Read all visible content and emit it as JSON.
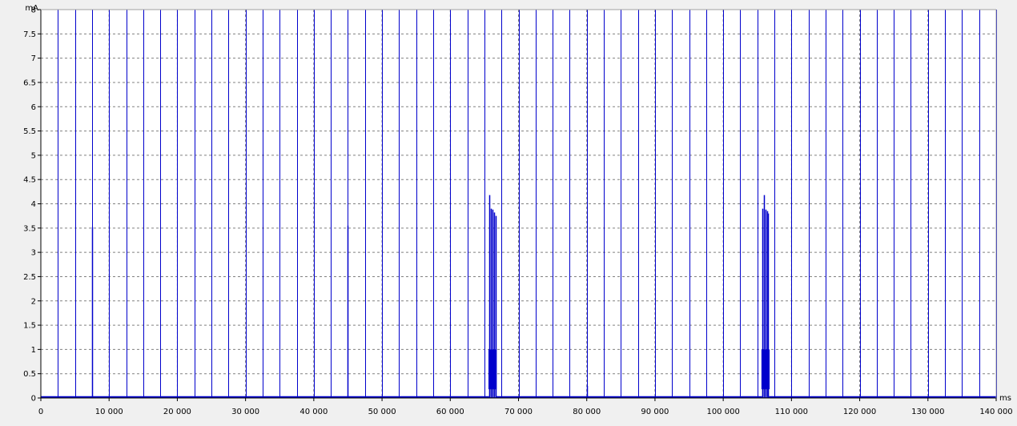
{
  "chart_data": {
    "type": "line",
    "title": "",
    "xlabel": "",
    "ylabel": "",
    "x_unit": "ms",
    "y_unit": "mA",
    "xlim": [
      0,
      140000
    ],
    "ylim": [
      0,
      8
    ],
    "x_ticks": [
      0,
      10000,
      20000,
      30000,
      40000,
      50000,
      60000,
      70000,
      80000,
      90000,
      100000,
      110000,
      120000,
      130000,
      140000
    ],
    "x_tick_labels": [
      "0",
      "10 000",
      "20 000",
      "30 000",
      "40 000",
      "50 000",
      "60 000",
      "70 000",
      "80 000",
      "90 000",
      "100 000",
      "110 000",
      "120 000",
      "130 000",
      "140 000"
    ],
    "y_ticks": [
      0,
      0.5,
      1,
      1.5,
      2,
      2.5,
      3,
      3.5,
      4,
      4.5,
      5,
      5.5,
      6,
      6.5,
      7,
      7.5,
      8
    ],
    "y_tick_labels": [
      "0",
      "0.5",
      "1",
      "1.5",
      "2",
      "2.5",
      "3",
      "3.5",
      "4",
      "4.5",
      "5",
      "5.5",
      "6",
      "6.5",
      "7",
      "7.5",
      "8"
    ],
    "grid": true,
    "legend": false,
    "colors": {
      "series": "#0000cc",
      "background": "#ffffff",
      "grid": "#808080",
      "frame": "#f0f0f0"
    },
    "series": [
      {
        "baseline": 0.02,
        "periodic_spikes": {
          "start": 2500,
          "interval": 2500,
          "count": 56,
          "peak": 8.1
        },
        "spikes": [
          {
            "x": 7500,
            "y": 3.52
          },
          {
            "x": 45000,
            "y": 3.55
          },
          {
            "x": 65700,
            "y": 4.18
          },
          {
            "x": 65950,
            "y": 3.9
          },
          {
            "x": 66150,
            "y": 3.88
          },
          {
            "x": 66400,
            "y": 3.82
          },
          {
            "x": 66600,
            "y": 3.75
          },
          {
            "x": 80000,
            "y": 0.25
          },
          {
            "x": 105700,
            "y": 3.9
          },
          {
            "x": 105950,
            "y": 4.18
          },
          {
            "x": 106150,
            "y": 3.88
          },
          {
            "x": 106400,
            "y": 3.85
          },
          {
            "x": 106600,
            "y": 3.8
          }
        ],
        "bursts": [
          {
            "x_start": 65600,
            "x_end": 66800,
            "high": 1.0,
            "low": 0.18
          },
          {
            "x_start": 105600,
            "x_end": 106800,
            "high": 1.0,
            "low": 0.18
          }
        ]
      }
    ]
  }
}
